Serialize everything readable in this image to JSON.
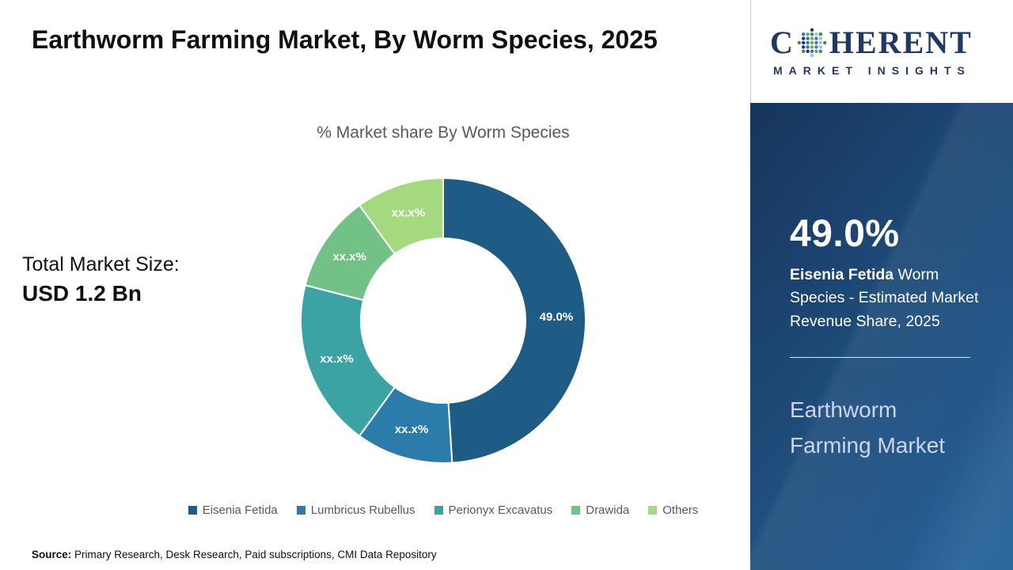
{
  "main": {
    "title": "Earthworm Farming Market, By Worm Species, 2025",
    "chart_title": "% Market share By Worm Species",
    "total_label": "Total Market Size:",
    "total_value": "USD 1.2 Bn",
    "source_label": "Source:",
    "source_text": " Primary Research, Desk Research, Paid subscriptions, CMI Data Repository"
  },
  "chart_data": {
    "type": "pie",
    "donut": true,
    "title": "% Market share By Worm Species",
    "categories": [
      "Eisenia Fetida",
      "Lumbricus Rubellus",
      "Perionyx Excavatus",
      "Drawida",
      "Others"
    ],
    "values": [
      49.0,
      11.0,
      19.0,
      11.0,
      10.0
    ],
    "labels": [
      "49.0%",
      "xx.x%",
      "xx.x%",
      "xx.x%",
      "xx.x%"
    ],
    "colors": [
      "#1f5c85",
      "#2b7cab",
      "#3ba3a4",
      "#72c287",
      "#a5d980"
    ],
    "legend_position": "bottom"
  },
  "sidebar": {
    "logo_c": "C",
    "logo_rest": "HERENT",
    "logo_subtitle": "MARKET INSIGHTS",
    "stat": "49.0%",
    "stat_bold": " Eisenia Fetida",
    "stat_rest": " Worm Species - Estimated Market Revenue Share, 2025",
    "market_name": "Earthworm Farming Market"
  }
}
